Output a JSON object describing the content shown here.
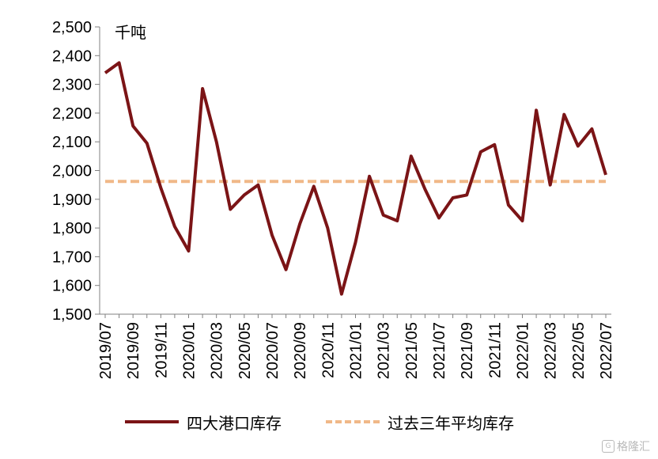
{
  "chart_data": {
    "type": "line",
    "unit": "千吨",
    "x": [
      "2019/07",
      "2019/08",
      "2019/09",
      "2019/10",
      "2019/11",
      "2019/12",
      "2020/01",
      "2020/02",
      "2020/03",
      "2020/04",
      "2020/05",
      "2020/06",
      "2020/07",
      "2020/08",
      "2020/09",
      "2020/10",
      "2020/11",
      "2020/12",
      "2021/01",
      "2021/02",
      "2021/03",
      "2021/04",
      "2021/05",
      "2021/06",
      "2021/07",
      "2021/08",
      "2021/09",
      "2021/10",
      "2021/11",
      "2021/12",
      "2022/01",
      "2022/02",
      "2022/03",
      "2022/04",
      "2022/05",
      "2022/06",
      "2022/07"
    ],
    "x_tick_labels": [
      "2019/07",
      "2019/09",
      "2019/11",
      "2020/01",
      "2020/03",
      "2020/05",
      "2020/07",
      "2020/09",
      "2020/11",
      "2021/01",
      "2021/03",
      "2021/05",
      "2021/07",
      "2021/09",
      "2021/11",
      "2022/01",
      "2022/03",
      "2022/05",
      "2022/07"
    ],
    "ylim": [
      1500,
      2500
    ],
    "y_ticks": [
      1500,
      1600,
      1700,
      1800,
      1900,
      2000,
      2100,
      2200,
      2300,
      2400,
      2500
    ],
    "y_tick_labels": [
      "1,500",
      "1,600",
      "1,700",
      "1,800",
      "1,900",
      "2,000",
      "2,100",
      "2,200",
      "2,300",
      "2,400",
      "2,500"
    ],
    "grid": false,
    "legend_position": "bottom",
    "series": [
      {
        "name": "四大港口库存",
        "style": "solid",
        "color": "#7b1416",
        "values": [
          2340,
          2375,
          2155,
          2095,
          1940,
          1805,
          1720,
          2285,
          2100,
          1865,
          1915,
          1950,
          1775,
          1655,
          1815,
          1945,
          1800,
          1570,
          1750,
          1980,
          1845,
          1825,
          2050,
          1935,
          1835,
          1905,
          1915,
          2065,
          2090,
          1880,
          1825,
          2210,
          1950,
          2195,
          2085,
          2145,
          1985
        ]
      },
      {
        "name": "过去三年平均库存",
        "style": "dashed",
        "color": "#f0b888",
        "values": [
          1962,
          1962,
          1962,
          1962,
          1962,
          1962,
          1962,
          1962,
          1962,
          1962,
          1962,
          1962,
          1962,
          1962,
          1962,
          1962,
          1962,
          1962,
          1962,
          1962,
          1962,
          1962,
          1962,
          1962,
          1962,
          1962,
          1962,
          1962,
          1962,
          1962,
          1962,
          1962,
          1962,
          1962,
          1962,
          1962,
          1962
        ]
      }
    ]
  },
  "watermark": {
    "text": "格隆汇"
  }
}
